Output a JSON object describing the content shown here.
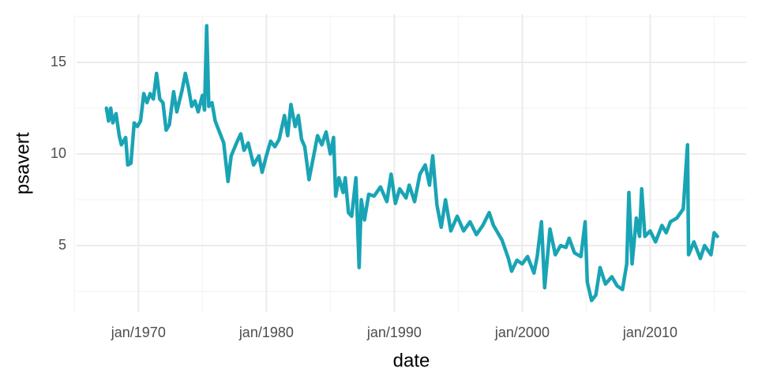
{
  "chart_data": {
    "type": "line",
    "x_label": "date",
    "y_label": "psavert",
    "color": "#19a4b5",
    "x": [
      "1967-07",
      "1967-09",
      "1967-11",
      "1968-01",
      "1968-04",
      "1968-07",
      "1968-09",
      "1969-01",
      "1969-03",
      "1969-06",
      "1969-09",
      "1969-12",
      "1970-03",
      "1970-06",
      "1970-09",
      "1970-12",
      "1971-03",
      "1971-06",
      "1971-09",
      "1971-12",
      "1972-03",
      "1972-06",
      "1972-10",
      "1973-01",
      "1973-06",
      "1973-09",
      "1973-12",
      "1974-03",
      "1974-06",
      "1974-09",
      "1975-01",
      "1975-03",
      "1975-05",
      "1975-07",
      "1975-10",
      "1976-01",
      "1976-05",
      "1976-09",
      "1977-01",
      "1977-04",
      "1977-09",
      "1978-01",
      "1978-04",
      "1978-08",
      "1979-01",
      "1979-06",
      "1979-09",
      "1980-01",
      "1980-05",
      "1980-09",
      "1981-01",
      "1981-06",
      "1981-09",
      "1981-12",
      "1982-04",
      "1982-07",
      "1982-10",
      "1983-01",
      "1983-05",
      "1983-09",
      "1984-01",
      "1984-05",
      "1984-09",
      "1985-01",
      "1985-04",
      "1985-06",
      "1985-09",
      "1986-01",
      "1986-03",
      "1986-06",
      "1986-09",
      "1987-01",
      "1987-04",
      "1987-06",
      "1987-09",
      "1988-01",
      "1988-06",
      "1988-12",
      "1989-06",
      "1989-10",
      "1990-02",
      "1990-06",
      "1990-12",
      "1991-03",
      "1991-08",
      "1992-01",
      "1992-06",
      "1992-10",
      "1993-01",
      "1993-05",
      "1993-09",
      "1994-01",
      "1994-06",
      "1994-12",
      "1995-06",
      "1995-12",
      "1996-06",
      "1996-12",
      "1997-06",
      "1997-10",
      "1998-06",
      "1998-12",
      "1999-03",
      "1999-08",
      "2000-01",
      "2000-06",
      "2000-12",
      "2001-03",
      "2001-07",
      "2001-10",
      "2002-03",
      "2002-08",
      "2003-01",
      "2003-06",
      "2003-09",
      "2004-02",
      "2004-08",
      "2004-12",
      "2005-02",
      "2005-06",
      "2005-10",
      "2006-02",
      "2006-07",
      "2007-01",
      "2007-06",
      "2007-11",
      "2008-03",
      "2008-05",
      "2008-08",
      "2008-12",
      "2009-03",
      "2009-05",
      "2009-08",
      "2010-01",
      "2010-06",
      "2010-12",
      "2011-04",
      "2011-08",
      "2012-02",
      "2012-08",
      "2012-12",
      "2013-01",
      "2013-06",
      "2013-12",
      "2014-04",
      "2014-10",
      "2015-01",
      "2015-04"
    ],
    "values": [
      12.5,
      11.8,
      12.5,
      11.7,
      12.2,
      11.0,
      10.5,
      10.9,
      9.4,
      9.5,
      11.7,
      11.5,
      11.8,
      13.3,
      12.8,
      13.3,
      13.0,
      14.4,
      13.0,
      12.8,
      11.3,
      11.6,
      13.4,
      12.3,
      13.5,
      14.4,
      13.6,
      12.6,
      12.9,
      12.3,
      13.2,
      12.4,
      17.0,
      12.6,
      12.8,
      11.8,
      11.2,
      10.6,
      8.5,
      9.9,
      10.6,
      11.1,
      10.2,
      10.6,
      9.4,
      9.9,
      9.0,
      9.9,
      10.7,
      10.4,
      10.8,
      12.1,
      11.0,
      12.7,
      11.5,
      12.1,
      10.8,
      10.4,
      8.6,
      9.8,
      11.0,
      10.5,
      11.2,
      10.0,
      10.9,
      7.7,
      8.7,
      7.9,
      8.7,
      6.8,
      6.6,
      8.7,
      3.8,
      7.5,
      6.4,
      7.8,
      7.7,
      8.2,
      7.4,
      8.9,
      7.3,
      8.1,
      7.6,
      8.3,
      7.4,
      8.9,
      9.4,
      8.3,
      9.9,
      7.2,
      6.0,
      7.5,
      5.8,
      6.6,
      5.8,
      6.3,
      5.6,
      6.1,
      6.8,
      6.1,
      5.3,
      4.3,
      3.6,
      4.2,
      4.0,
      4.4,
      3.5,
      4.4,
      6.3,
      2.7,
      5.9,
      4.5,
      5.0,
      4.9,
      5.4,
      4.6,
      4.4,
      6.3,
      3.0,
      2.0,
      2.3,
      3.8,
      2.9,
      3.3,
      2.8,
      2.6,
      4.0,
      7.9,
      4.0,
      6.5,
      5.5,
      8.1,
      5.5,
      5.8,
      5.2,
      6.1,
      5.7,
      6.3,
      6.5,
      7.0,
      10.5,
      4.5,
      5.2,
      4.3,
      5.0,
      4.5,
      5.7,
      5.5
    ],
    "xlim": [
      "1965-03",
      "2017-07"
    ],
    "xticks": [
      {
        "value": "1970-01",
        "label": "jan/1970"
      },
      {
        "value": "1980-01",
        "label": "jan/1980"
      },
      {
        "value": "1990-01",
        "label": "jan/1990"
      },
      {
        "value": "2000-01",
        "label": "jan/2000"
      },
      {
        "value": "2010-01",
        "label": "jan/2010"
      }
    ],
    "minor_xticks": [
      "1965-01",
      "1975-01",
      "1985-01",
      "1995-01",
      "2005-01",
      "2015-01"
    ],
    "ylim": [
      1.38,
      17.63
    ],
    "yticks": [
      5,
      10,
      15
    ],
    "minor_yticks": [
      2.5,
      7.5,
      12.5,
      17.5
    ],
    "grid": true
  }
}
